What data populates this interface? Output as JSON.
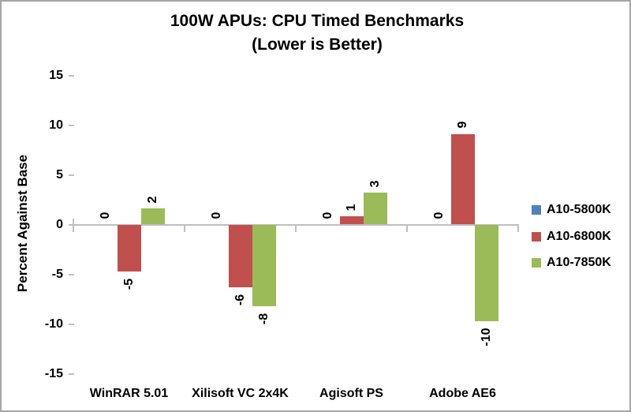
{
  "chart_data": {
    "type": "bar",
    "title_line1": "100W APUs: CPU Timed Benchmarks",
    "title_line2": "(Lower is Better)",
    "ylabel": "Percent Against Base",
    "ylim": [
      -15,
      15
    ],
    "yticks": [
      15,
      10,
      5,
      0,
      -5,
      -10,
      -15
    ],
    "grid": false,
    "legend_position": "right",
    "axis_color": "#BFBFBF",
    "categories": [
      "WinRAR 5.01",
      "Xilisoft VC 2x4K",
      "Agisoft PS",
      "Adobe AE6"
    ],
    "series": [
      {
        "name": "A10-5800K",
        "color": "#4F81BD",
        "values": [
          0,
          0,
          0,
          0
        ],
        "labels": [
          "0",
          "0",
          "0",
          "0"
        ]
      },
      {
        "name": "A10-6800K",
        "color": "#C0504D",
        "values": [
          -4.7,
          -6.3,
          0.8,
          9.1
        ],
        "labels": [
          "-5",
          "-6",
          "1",
          "9"
        ]
      },
      {
        "name": "A10-7850K",
        "color": "#9BBB59",
        "values": [
          1.6,
          -8.2,
          3.2,
          -9.7
        ],
        "labels": [
          "2",
          "-8",
          "3",
          "-10"
        ]
      }
    ]
  }
}
